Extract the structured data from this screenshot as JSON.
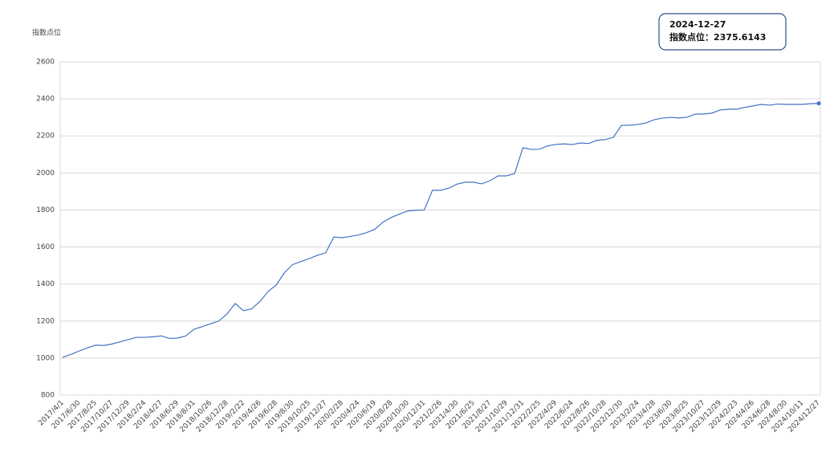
{
  "chart_data": {
    "type": "line",
    "y_label": "指数点位",
    "tooltip": {
      "date": "2024-12-27",
      "text": "指数点位：2375.6143"
    },
    "categories": [
      "2017/4/1",
      null,
      "2017/6/30",
      null,
      "2017/8/25",
      null,
      "2017/10/27",
      null,
      "2017/12/29",
      null,
      "2018/2/24",
      null,
      "2018/4/27",
      null,
      "2018/6/29",
      null,
      "2018/8/31",
      null,
      "2018/10/26",
      null,
      "2018/12/28",
      null,
      "2019/2/22",
      null,
      "2019/4/26",
      null,
      "2019/6/28",
      null,
      "2019/8/30",
      null,
      "2019/10/25",
      null,
      "2019/12/27",
      null,
      "2020/2/28",
      null,
      "2020/4/24",
      null,
      "2020/6/19",
      null,
      "2020/8/28",
      null,
      "2020/10/30",
      null,
      "2020/12/31",
      null,
      "2021/2/26",
      null,
      "2021/4/30",
      null,
      "2021/6/25",
      null,
      "2021/8/27",
      null,
      "2021/10/29",
      null,
      "2021/12/31",
      null,
      "2022/2/25",
      null,
      "2022/4/29",
      null,
      "2022/6/24",
      null,
      "2022/8/26",
      null,
      "2022/10/28",
      null,
      "2022/12/30",
      null,
      "2023/2/24",
      null,
      "2023/4/28",
      null,
      "2023/6/30",
      null,
      "2023/8/25",
      null,
      "2023/10/27",
      null,
      "2023/12/29",
      null,
      "2024/2/23",
      null,
      "2024/4/26",
      null,
      "2024/6/28",
      null,
      "2024/8/30",
      null,
      "2024/10/11",
      null,
      "2024/12/27"
    ],
    "series": [
      {
        "name": "指数点位",
        "color": "#4472c4",
        "values": [
          1004,
          1020,
          1038,
          1055,
          1070,
          1068,
          1076,
          1088,
          1100,
          1112,
          1112,
          1115,
          1120,
          1106,
          1108,
          1120,
          1156,
          1170,
          1185,
          1200,
          1238,
          1295,
          1256,
          1266,
          1305,
          1360,
          1395,
          1462,
          1505,
          1522,
          1537,
          1555,
          1568,
          1654,
          1650,
          1657,
          1665,
          1678,
          1696,
          1735,
          1760,
          1778,
          1795,
          1798,
          1800,
          1906,
          1906,
          1918,
          1940,
          1950,
          1950,
          1941,
          1958,
          1984,
          1984,
          1997,
          2136,
          2127,
          2128,
          2146,
          2154,
          2157,
          2153,
          2162,
          2159,
          2176,
          2180,
          2192,
          2257,
          2258,
          2262,
          2270,
          2288,
          2296,
          2300,
          2297,
          2301,
          2318,
          2318,
          2323,
          2340,
          2344,
          2344,
          2354,
          2362,
          2370,
          2366,
          2372,
          2370,
          2370,
          2370,
          2374,
          2375.6143
        ]
      }
    ],
    "ylim": [
      800,
      2600
    ],
    "yticks": [
      800,
      1000,
      1200,
      1400,
      1600,
      1800,
      2000,
      2200,
      2400,
      2600
    ],
    "grid": true
  }
}
